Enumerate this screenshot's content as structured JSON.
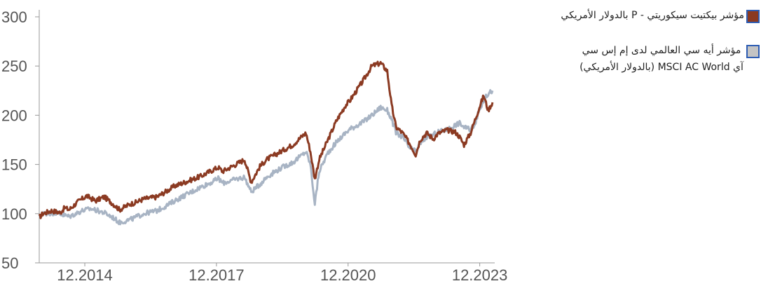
{
  "chart_data": {
    "type": "line",
    "title": "",
    "xlabel": "",
    "ylabel": "",
    "ylim": [
      50,
      300
    ],
    "y_ticks": [
      "300",
      "250",
      "200",
      "150",
      "100",
      "50"
    ],
    "x_tick_labels": [
      "12.2014",
      "12.2017",
      "12.2020",
      "12.2023"
    ],
    "x_range": [
      2013.92,
      2024.3
    ],
    "grid": false,
    "legend_placement": "top-right",
    "series": [
      {
        "name": "مؤشر بيكتيت سيكوريتي - P بالدولار الأمريكي",
        "color": "#8b3a22",
        "x": [
          2013.92,
          2014.0,
          2014.2,
          2014.4,
          2014.5,
          2014.6,
          2014.8,
          2015.0,
          2015.2,
          2015.4,
          2015.6,
          2015.75,
          2016.0,
          2016.1,
          2016.3,
          2016.6,
          2016.9,
          2017.0,
          2017.3,
          2017.6,
          2017.9,
          2018.0,
          2018.1,
          2018.4,
          2018.6,
          2018.75,
          2018.95,
          2019.1,
          2019.3,
          2019.5,
          2019.7,
          2019.92,
          2020.0,
          2020.1,
          2020.2,
          2020.3,
          2020.5,
          2020.7,
          2020.9,
          2021.0,
          2021.3,
          2021.5,
          2021.7,
          2021.85,
          2021.95,
          2022.05,
          2022.2,
          2022.35,
          2022.5,
          2022.6,
          2022.75,
          2022.9,
          2023.0,
          2023.2,
          2023.4,
          2023.5,
          2023.6,
          2023.75,
          2023.85,
          2023.95,
          2024.05,
          2024.15,
          2024.25
        ],
        "values": [
          96,
          100,
          103,
          101,
          106,
          104,
          112,
          118,
          113,
          117,
          110,
          104,
          110,
          111,
          115,
          117,
          125,
          128,
          133,
          138,
          145,
          147,
          143,
          150,
          155,
          132,
          148,
          155,
          160,
          165,
          170,
          179,
          182,
          163,
          135,
          155,
          175,
          195,
          210,
          215,
          235,
          250,
          253,
          245,
          210,
          188,
          182,
          172,
          160,
          175,
          182,
          176,
          181,
          185,
          183,
          178,
          170,
          182,
          195,
          208,
          220,
          205,
          213
        ]
      },
      {
        "name": "مؤشر أيه سي العالمي لدى إم إس سي آي MSCI AC World (بالدولار الأمريكي)",
        "color": "#a8b4c4",
        "x": [
          2013.92,
          2014.0,
          2014.3,
          2014.6,
          2014.9,
          2015.1,
          2015.4,
          2015.6,
          2015.75,
          2016.0,
          2016.1,
          2016.3,
          2016.6,
          2016.9,
          2017.0,
          2017.3,
          2017.6,
          2017.9,
          2018.0,
          2018.1,
          2018.4,
          2018.6,
          2018.75,
          2018.95,
          2019.1,
          2019.3,
          2019.5,
          2019.7,
          2019.92,
          2020.0,
          2020.1,
          2020.2,
          2020.3,
          2020.5,
          2020.7,
          2020.9,
          2021.0,
          2021.3,
          2021.5,
          2021.7,
          2021.85,
          2021.95,
          2022.05,
          2022.2,
          2022.35,
          2022.5,
          2022.6,
          2022.75,
          2022.9,
          2023.0,
          2023.2,
          2023.4,
          2023.5,
          2023.6,
          2023.75,
          2023.85,
          2023.95,
          2024.05,
          2024.15,
          2024.25
        ],
        "values": [
          97,
          100,
          101,
          97,
          103,
          105,
          101,
          96,
          91,
          94,
          96,
          100,
          103,
          110,
          113,
          120,
          127,
          133,
          136,
          131,
          135,
          137,
          122,
          130,
          137,
          143,
          148,
          152,
          160,
          163,
          150,
          110,
          143,
          162,
          173,
          182,
          186,
          193,
          200,
          208,
          205,
          196,
          182,
          178,
          167,
          163,
          171,
          178,
          180,
          183,
          185,
          190,
          192,
          188,
          185,
          192,
          205,
          215,
          222,
          225
        ]
      }
    ]
  }
}
